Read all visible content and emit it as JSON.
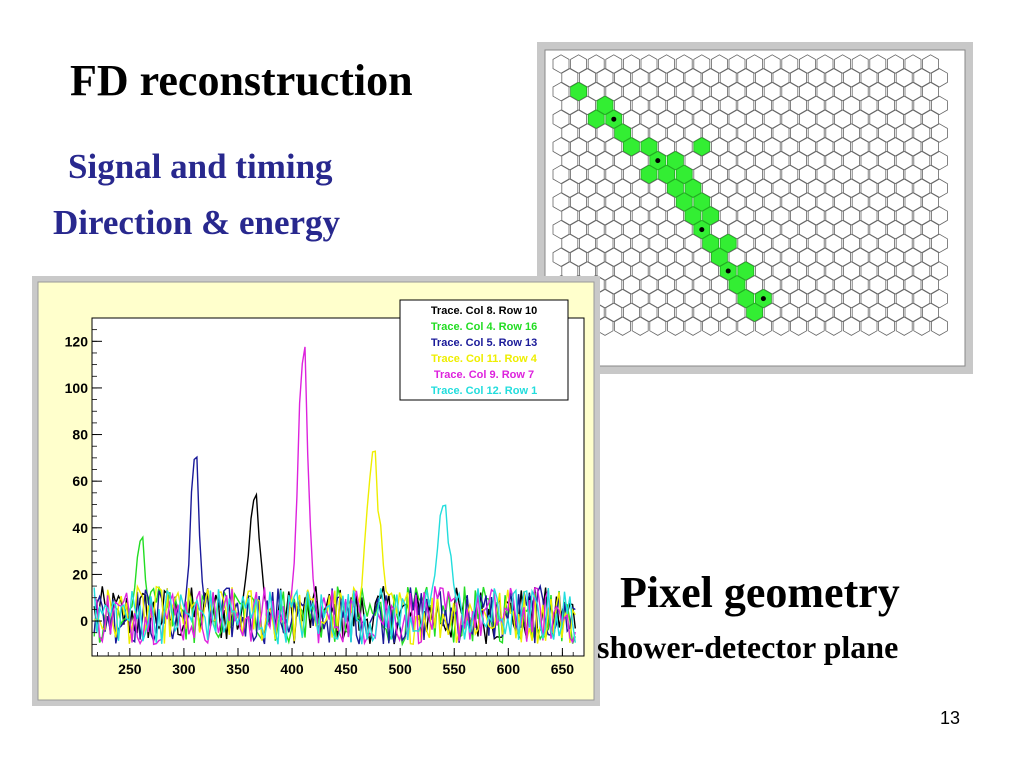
{
  "slide": {
    "title": "FD reconstruction",
    "subtitle_line1": "Signal and timing",
    "subtitle_line2": "Direction & energy",
    "pixel_title": "Pixel geometry",
    "pixel_subtitle": "shower-detector plane",
    "page_number": "13"
  },
  "colors": {
    "subtitle": "#28288e",
    "hex_hit": "#33ee33",
    "hex_outline": "#666666",
    "plot_frame_bg": "#ffffcc"
  },
  "pixel_map": {
    "rows": 20,
    "columns": 22,
    "hit_cells": [
      [
        2,
        1
      ],
      [
        3,
        2
      ],
      [
        4,
        2
      ],
      [
        4,
        3
      ],
      [
        5,
        3
      ],
      [
        6,
        4
      ],
      [
        6,
        5
      ],
      [
        7,
        5
      ],
      [
        7,
        6
      ],
      [
        8,
        5
      ],
      [
        8,
        6
      ],
      [
        8,
        7
      ],
      [
        9,
        6
      ],
      [
        9,
        7
      ],
      [
        10,
        7
      ],
      [
        10,
        8
      ],
      [
        11,
        7
      ],
      [
        11,
        8
      ],
      [
        12,
        8
      ],
      [
        13,
        8
      ],
      [
        13,
        9
      ],
      [
        14,
        9
      ],
      [
        15,
        9
      ],
      [
        15,
        10
      ],
      [
        16,
        10
      ],
      [
        17,
        10
      ],
      [
        17,
        11
      ],
      [
        18,
        11
      ],
      [
        6,
        8
      ]
    ],
    "marked_cells": [
      [
        4,
        3
      ],
      [
        7,
        5
      ],
      [
        12,
        8
      ],
      [
        15,
        9
      ],
      [
        17,
        11
      ]
    ]
  },
  "chart_data": {
    "type": "line",
    "title": "",
    "xlabel": "",
    "ylabel": "",
    "xlim": [
      215,
      670
    ],
    "ylim": [
      -15,
      130
    ],
    "x_ticks": [
      "250",
      "300",
      "350",
      "400",
      "450",
      "500",
      "550",
      "600",
      "650"
    ],
    "y_ticks": [
      "0",
      "20",
      "40",
      "60",
      "80",
      "100",
      "120"
    ],
    "legend_position": "top-right",
    "series": [
      {
        "name": "Trace. Col 8. Row 10",
        "color": "#000000",
        "peak_x": 365,
        "peak_y": 55,
        "peak_width": 8
      },
      {
        "name": "Trace. Col 4. Row 16",
        "color": "#22dd22",
        "peak_x": 260,
        "peak_y": 36,
        "peak_width": 6
      },
      {
        "name": "Trace. Col 5. Row 13",
        "color": "#1a1a99",
        "peak_x": 310,
        "peak_y": 73,
        "peak_width": 6
      },
      {
        "name": "Trace. Col 11. Row 4",
        "color": "#eeee00",
        "peak_x": 475,
        "peak_y": 75,
        "peak_width": 9
      },
      {
        "name": "Trace. Col 9. Row 7",
        "color": "#dd22dd",
        "peak_x": 410,
        "peak_y": 118,
        "peak_width": 7
      },
      {
        "name": "Trace. Col 12. Row 1",
        "color": "#22dddd",
        "peak_x": 540,
        "peak_y": 52,
        "peak_width": 9
      }
    ],
    "noise_range": [
      -10,
      15
    ]
  }
}
